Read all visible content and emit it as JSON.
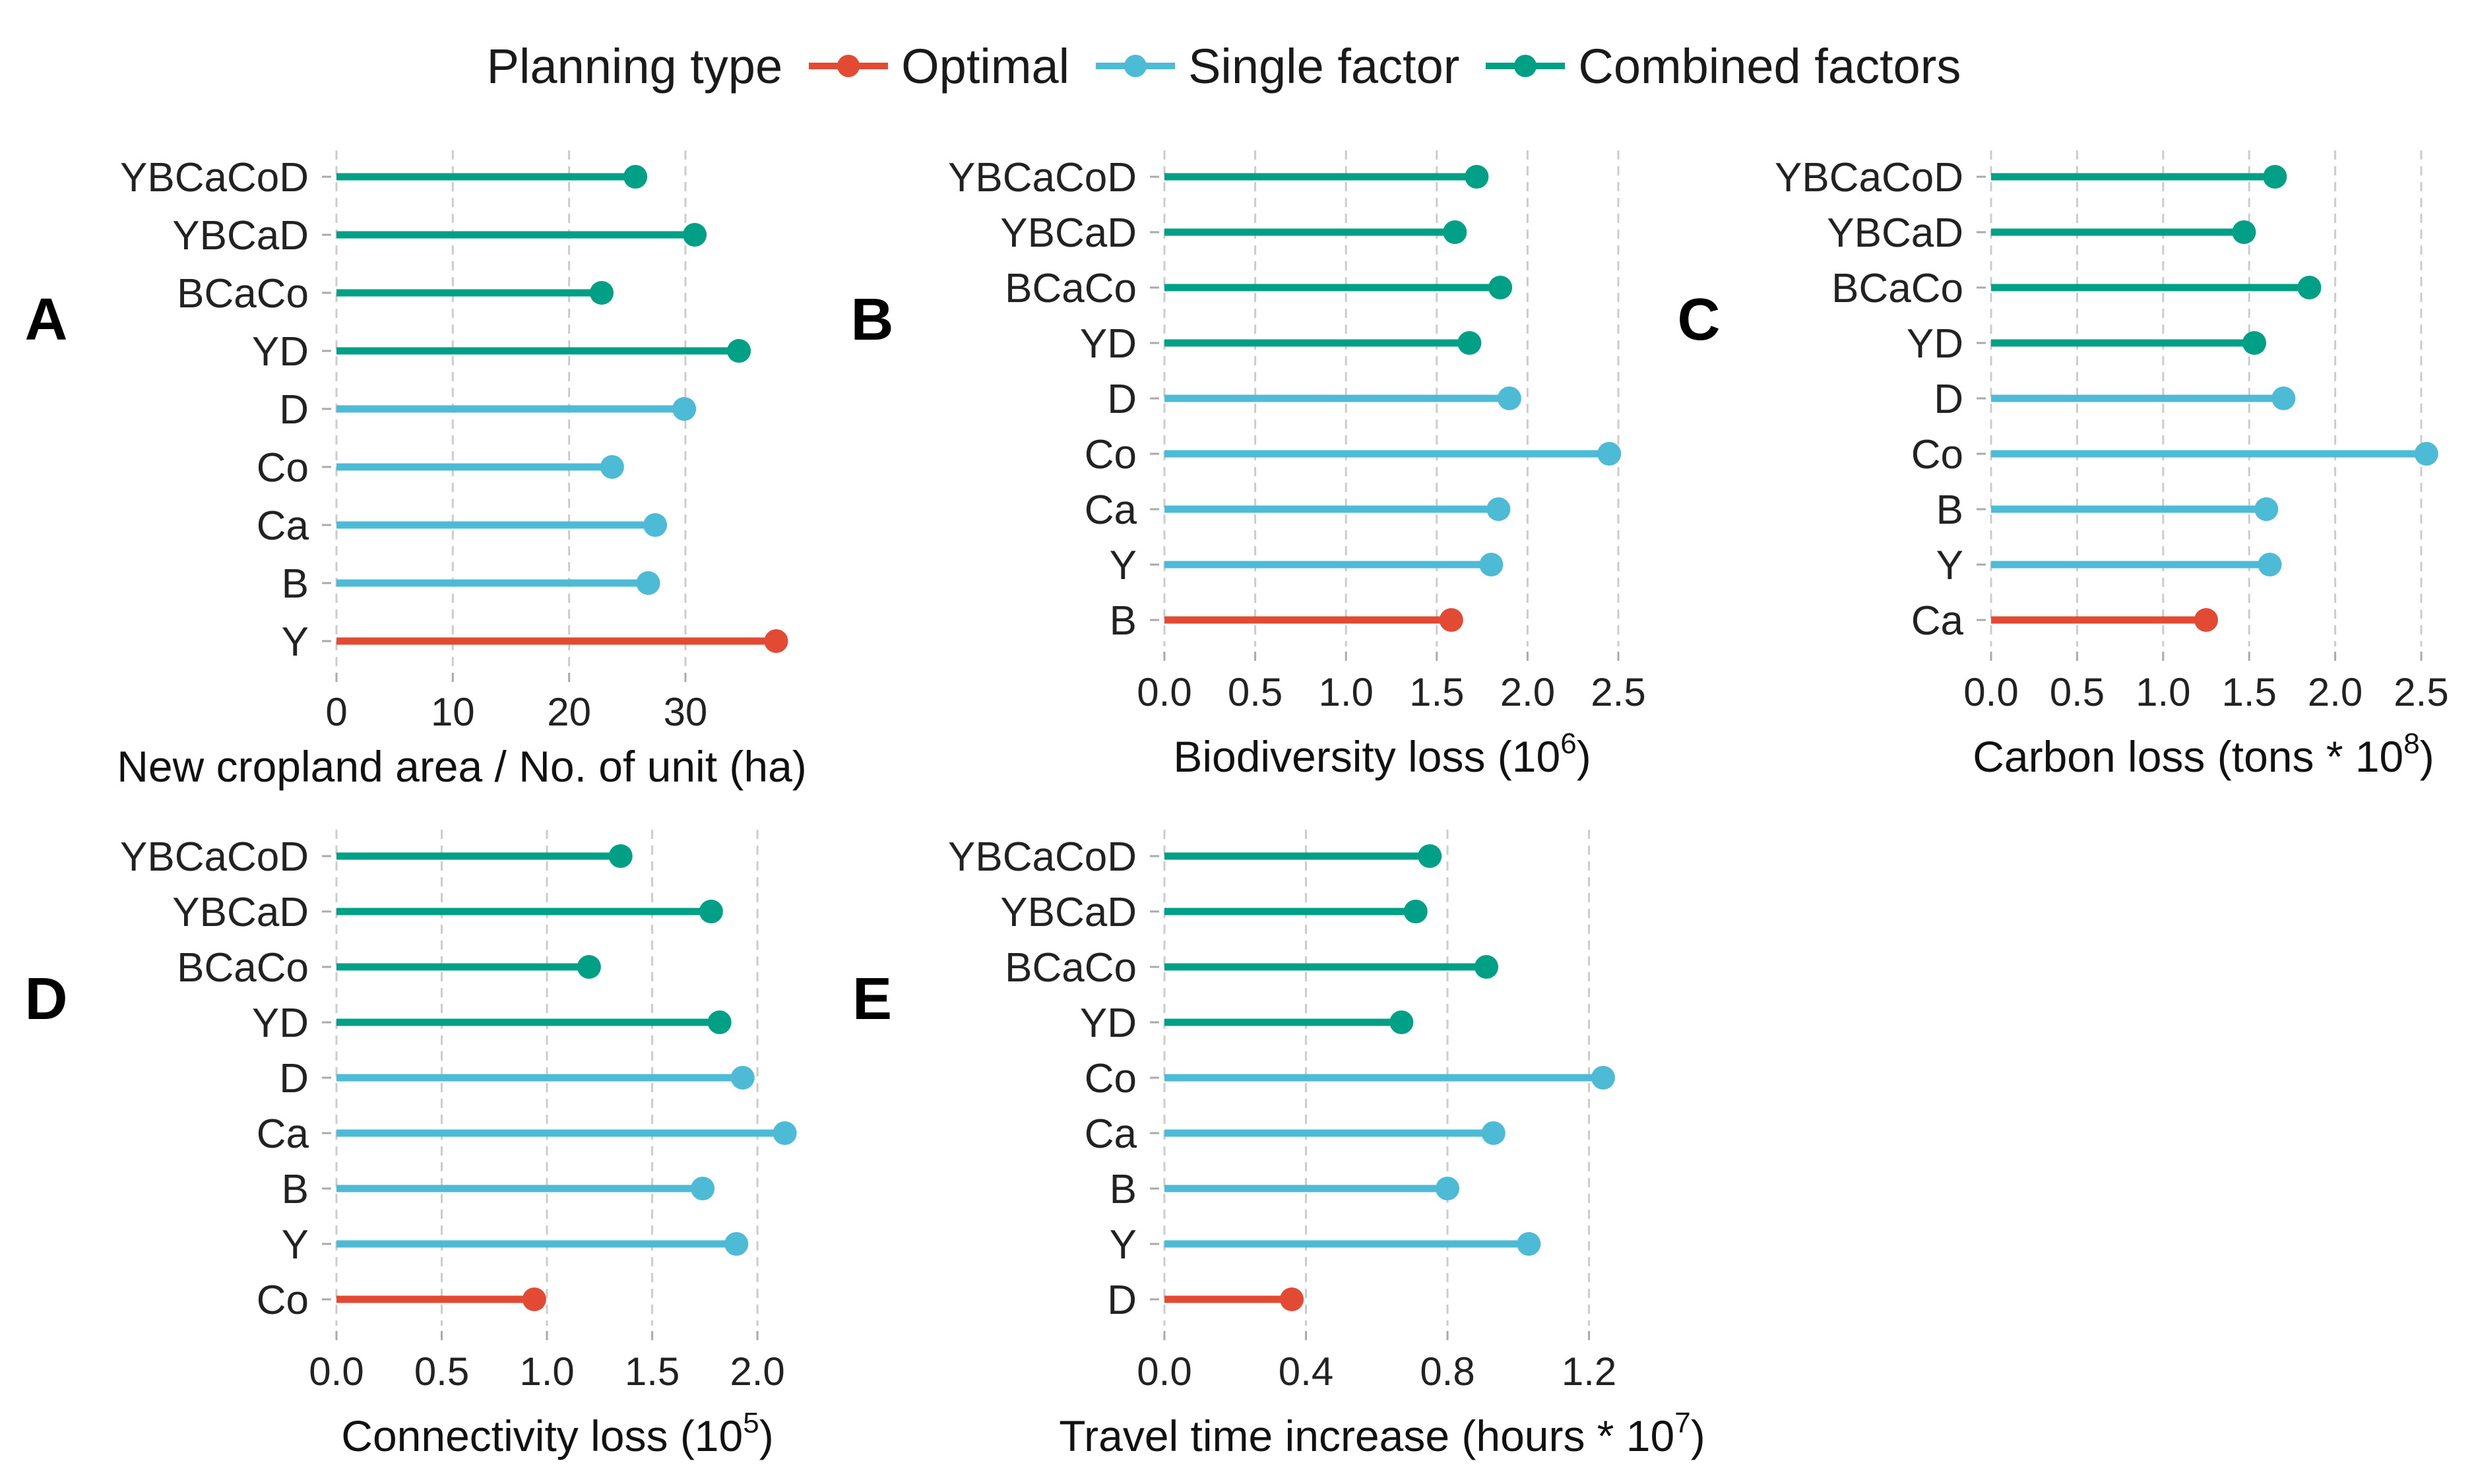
{
  "legend": {
    "title": "Planning type",
    "items": [
      {
        "label": "Optimal",
        "color": "#E24A33"
      },
      {
        "label": "Single factor",
        "color": "#4DBBD5"
      },
      {
        "label": "Combined factors",
        "color": "#00A087"
      }
    ]
  },
  "chart_data": [
    {
      "panel": "A",
      "type": "lollipop",
      "xlabel": "New cropland area / No. of unit (ha)",
      "xlim": [
        0,
        38
      ],
      "xticks": [
        0,
        10,
        20,
        30
      ],
      "xtick_labels": [
        "0",
        "10",
        "20",
        "30"
      ],
      "grid": true,
      "items": [
        {
          "label": "YBCaCoD",
          "value": 25.7,
          "group": "Combined factors"
        },
        {
          "label": "YBCaD",
          "value": 30.8,
          "group": "Combined factors"
        },
        {
          "label": "BCaCo",
          "value": 22.8,
          "group": "Combined factors"
        },
        {
          "label": "YD",
          "value": 34.6,
          "group": "Combined factors"
        },
        {
          "label": "D",
          "value": 29.9,
          "group": "Single factor"
        },
        {
          "label": "Co",
          "value": 23.7,
          "group": "Single factor"
        },
        {
          "label": "Ca",
          "value": 27.4,
          "group": "Single factor"
        },
        {
          "label": "B",
          "value": 26.8,
          "group": "Single factor"
        },
        {
          "label": "Y",
          "value": 37.8,
          "group": "Optimal"
        }
      ]
    },
    {
      "panel": "B",
      "type": "lollipop",
      "xlabel": "Biodiversity loss (10",
      "xlabel_sup": "6",
      "xlabel_end": ")",
      "xlim": [
        0,
        2.5
      ],
      "xticks": [
        0,
        0.5,
        1,
        1.5,
        2,
        2.5
      ],
      "xtick_labels": [
        "0.0",
        "0.5",
        "1.0",
        "1.5",
        "2.0",
        "2.5"
      ],
      "grid": true,
      "items": [
        {
          "label": "YBCaCoD",
          "value": 1.72,
          "group": "Combined factors"
        },
        {
          "label": "YBCaD",
          "value": 1.6,
          "group": "Combined factors"
        },
        {
          "label": "BCaCo",
          "value": 1.85,
          "group": "Combined factors"
        },
        {
          "label": "YD",
          "value": 1.68,
          "group": "Combined factors"
        },
        {
          "label": "D",
          "value": 1.9,
          "group": "Single factor"
        },
        {
          "label": "Co",
          "value": 2.45,
          "group": "Single factor"
        },
        {
          "label": "Ca",
          "value": 1.84,
          "group": "Single factor"
        },
        {
          "label": "Y",
          "value": 1.8,
          "group": "Single factor"
        },
        {
          "label": "B",
          "value": 1.58,
          "group": "Optimal"
        }
      ]
    },
    {
      "panel": "C",
      "type": "lollipop",
      "xlabel": "Carbon loss (tons * 10",
      "xlabel_sup": "8",
      "xlabel_end": ")",
      "xlim": [
        0,
        2.5
      ],
      "xticks": [
        0,
        0.5,
        1,
        1.5,
        2,
        2.5
      ],
      "xtick_labels": [
        "0.0",
        "0.5",
        "1.0",
        "1.5",
        "2.0",
        "2.5"
      ],
      "grid": true,
      "items": [
        {
          "label": "YBCaCoD",
          "value": 1.65,
          "group": "Combined factors"
        },
        {
          "label": "YBCaD",
          "value": 1.47,
          "group": "Combined factors"
        },
        {
          "label": "BCaCo",
          "value": 1.85,
          "group": "Combined factors"
        },
        {
          "label": "YD",
          "value": 1.53,
          "group": "Combined factors"
        },
        {
          "label": "D",
          "value": 1.7,
          "group": "Single factor"
        },
        {
          "label": "Co",
          "value": 2.53,
          "group": "Single factor"
        },
        {
          "label": "B",
          "value": 1.6,
          "group": "Single factor"
        },
        {
          "label": "Y",
          "value": 1.62,
          "group": "Single factor"
        },
        {
          "label": "Ca",
          "value": 1.25,
          "group": "Optimal"
        }
      ]
    },
    {
      "panel": "D",
      "type": "lollipop",
      "xlabel": "Connectivity loss (10",
      "xlabel_sup": "5",
      "xlabel_end": ")",
      "xlim": [
        0,
        2.1
      ],
      "xticks": [
        0,
        0.5,
        1,
        1.5,
        2
      ],
      "xtick_labels": [
        "0.0",
        "0.5",
        "1.0",
        "1.5",
        "2.0"
      ],
      "grid": true,
      "items": [
        {
          "label": "YBCaCoD",
          "value": 1.35,
          "group": "Combined factors"
        },
        {
          "label": "YBCaD",
          "value": 1.78,
          "group": "Combined factors"
        },
        {
          "label": "BCaCo",
          "value": 1.2,
          "group": "Combined factors"
        },
        {
          "label": "YD",
          "value": 1.82,
          "group": "Combined factors"
        },
        {
          "label": "D",
          "value": 1.93,
          "group": "Single factor"
        },
        {
          "label": "Ca",
          "value": 2.13,
          "group": "Single factor"
        },
        {
          "label": "B",
          "value": 1.74,
          "group": "Single factor"
        },
        {
          "label": "Y",
          "value": 1.9,
          "group": "Single factor"
        },
        {
          "label": "Co",
          "value": 0.94,
          "group": "Optimal"
        }
      ]
    },
    {
      "panel": "E",
      "type": "lollipop",
      "xlabel": "Travel time increase (hours * 10",
      "xlabel_sup": "7",
      "xlabel_end": ")",
      "xlim": [
        0,
        1.24
      ],
      "xticks": [
        0,
        0.4,
        0.8,
        1.2
      ],
      "xtick_labels": [
        "0.0",
        "0.4",
        "0.8",
        "1.2"
      ],
      "grid": true,
      "items": [
        {
          "label": "YBCaCoD",
          "value": 0.75,
          "group": "Combined factors"
        },
        {
          "label": "YBCaD",
          "value": 0.71,
          "group": "Combined factors"
        },
        {
          "label": "BCaCo",
          "value": 0.91,
          "group": "Combined factors"
        },
        {
          "label": "YD",
          "value": 0.67,
          "group": "Combined factors"
        },
        {
          "label": "Co",
          "value": 1.24,
          "group": "Single factor"
        },
        {
          "label": "Ca",
          "value": 0.93,
          "group": "Single factor"
        },
        {
          "label": "B",
          "value": 0.8,
          "group": "Single factor"
        },
        {
          "label": "Y",
          "value": 1.03,
          "group": "Single factor"
        },
        {
          "label": "D",
          "value": 0.36,
          "group": "Optimal"
        }
      ]
    }
  ]
}
